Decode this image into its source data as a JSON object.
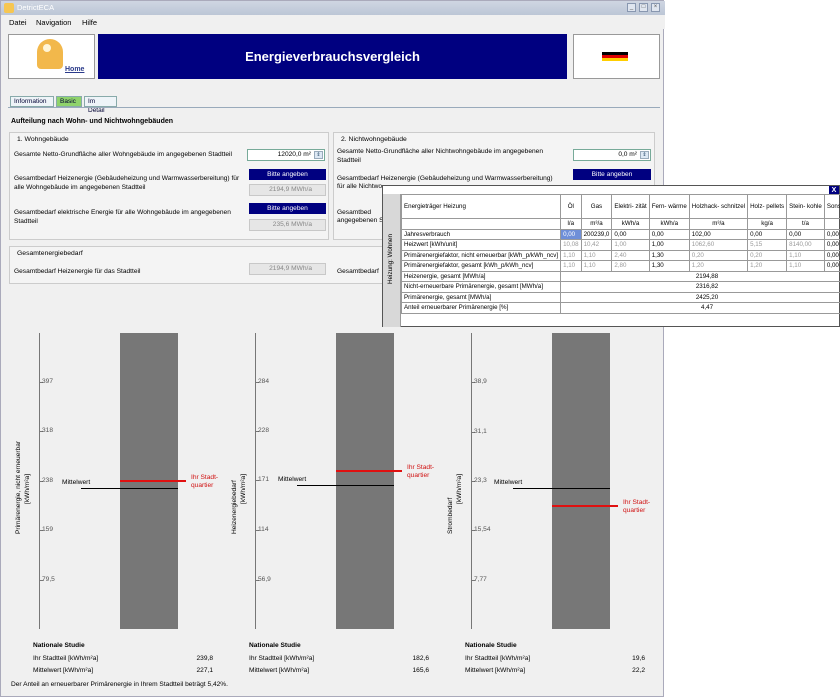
{
  "app": {
    "title": "DetrictECA",
    "menu": [
      "Datei",
      "Navigation",
      "Hilfe"
    ]
  },
  "header": {
    "title": "Energieverbrauchsvergleich",
    "home_label": "Home"
  },
  "tabs": [
    {
      "label": "Information"
    },
    {
      "label": "Basic"
    },
    {
      "label": "Im Detail"
    }
  ],
  "section_title": "Aufteilung nach Wohn- und Nichtwohngebäuden",
  "wohn": {
    "title": "1. Wohngebäude",
    "area_label": "Gesamte Netto-Grundfläche aller Wohngebäude im angegebenen Stadtteil",
    "area_value": "12020,0 m²",
    "heat_label": "Gesamtbedarf Heizenergie (Gebäudeheizung und Warmwasserbereitung) für alle Wohngebäude im angegebenen Stadtteil",
    "heat_button": "Bitte angeben",
    "heat_value": "2194,9 MWh/a",
    "elec_label": "Gesamtbedarf elektrische Energie für alle Wohngebäude im angegebenen Stadtteil",
    "elec_button": "Bitte angeben",
    "elec_value": "235,6 MWh/a"
  },
  "nichtwohn": {
    "title": "2. Nichtwohngebäude",
    "area_label": "Gesamte Netto-Grundfläche aller Nichtwohngebäude im angegebenen Stadtteil",
    "area_value": "0,0 m²",
    "heat_label_a": "Gesamtbedarf Heizenergie (Gebäudeheizung und Warmwasserbereitung)",
    "heat_label_b": "für alle Nichtwo",
    "heat_button": "Bitte angeben",
    "elec_label_a": "Gesamtbed",
    "elec_label_b": "angegebenen S"
  },
  "gesamt": {
    "title": "Gesamtenergiebedarf",
    "heat_label": "Gesamtbedarf Heizenergie für das Stadtteil",
    "heat_value": "2194,9 MWh/a",
    "elec_label": "Gesamtbedarf"
  },
  "charts": [
    {
      "ylabel1": "Primärenergie, nicht erneuerbar",
      "ylabel2": "[kWh/m²a]",
      "ticks": [
        "397",
        "318",
        "238",
        "159",
        "79,5"
      ],
      "mittelwert_label": "Mittelwert",
      "ihr_label": "Ihr Stadt- quartier",
      "mittelwert": 227.1,
      "ihr": 239.8,
      "stat_title": "Nationale Studie",
      "stat1_label": "Ihr Stadtteil [kWh/m²a]",
      "stat1_value": "239,8",
      "stat2_label": "Mittelwert [kWh/m²a]",
      "stat2_value": "227,1"
    },
    {
      "ylabel1": "Heizenergiebedarf",
      "ylabel2": "[kWh/m²a]",
      "ticks": [
        "284",
        "228",
        "171",
        "114",
        "56,9"
      ],
      "mittelwert_label": "Mittelwert",
      "ihr_label": "Ihr Stadt- quartier",
      "mittelwert": 165.6,
      "ihr": 182.6,
      "stat_title": "Nationale Studie",
      "stat1_label": "Ihr Stadtteil [kWh/m²a]",
      "stat1_value": "182,6",
      "stat2_label": "Mittelwert [kWh/m²a]",
      "stat2_value": "165,6"
    },
    {
      "ylabel1": "Strombedarf",
      "ylabel2": "[kWh/m²a]",
      "ticks": [
        "38,9",
        "31,1",
        "23,3",
        "15,54",
        "7,77"
      ],
      "mittelwert_label": "Mittelwert",
      "ihr_label": "Ihr Stadt- quartier",
      "mittelwert": 22.2,
      "ihr": 19.6,
      "stat_title": "Nationale Studie",
      "stat1_label": "Ihr Stadtteil [kWh/m²a]",
      "stat1_value": "19,6",
      "stat2_label": "Mittelwert [kWh/m²a]",
      "stat2_value": "22,2"
    }
  ],
  "footer": "Der Anteil an erneuerbarer Primärenergie in Ihrem Stadtteil beträgt 5,42%.",
  "popup": {
    "close": "X",
    "side_label": "Heizung: Wohnen",
    "headers": [
      "Energieträger Heizung",
      "Öl",
      "Gas",
      "Elektri- zität",
      "Fern- wärme",
      "Holzhack- schnitzel",
      "Holz- pellets",
      "Stein- kohle",
      "Sonstige"
    ],
    "units": [
      "",
      "l/a",
      "m³/a",
      "kWh/a",
      "kWh/a",
      "m³/a",
      "kg/a",
      "t/a",
      ""
    ],
    "rows": [
      {
        "label": "Jahresverbrauch",
        "values": [
          "0,00",
          "200239,0",
          "0,00",
          "0,00",
          "102,00",
          "0,00",
          "0,00",
          "0,00"
        ]
      },
      {
        "label": "Heizwert [kWh/unit]",
        "values": [
          "10,08",
          "10,42",
          "1,00",
          "1,00",
          "1062,60",
          "5,15",
          "8140,00",
          "0,00"
        ]
      },
      {
        "label": "Primärenergiefaktor, nicht erneuerbar [kWh_p/kWh_ncv]",
        "values": [
          "1,10",
          "1,10",
          "2,40",
          "1,30",
          "0,20",
          "0,20",
          "1,10",
          "0,00"
        ]
      },
      {
        "label": "Primärenergiefaktor, gesamt [kWh_p/kWh_ncv]",
        "values": [
          "1,10",
          "1,10",
          "2,80",
          "1,30",
          "1,20",
          "1,20",
          "1,10",
          "0,00"
        ]
      }
    ],
    "totals": [
      {
        "label": "Heizenergie, gesamt [MWh/a]",
        "value": "2194,88"
      },
      {
        "label": "Nicht-erneuerbare Primärenergie, gesamt [MWh/a]",
        "value": "2316,82"
      },
      {
        "label": "Primärenergie, gesamt [MWh/a]",
        "value": "2425,20"
      },
      {
        "label": "Anteil erneuerbarer Primärenergie [%]",
        "value": "4,47"
      }
    ]
  }
}
